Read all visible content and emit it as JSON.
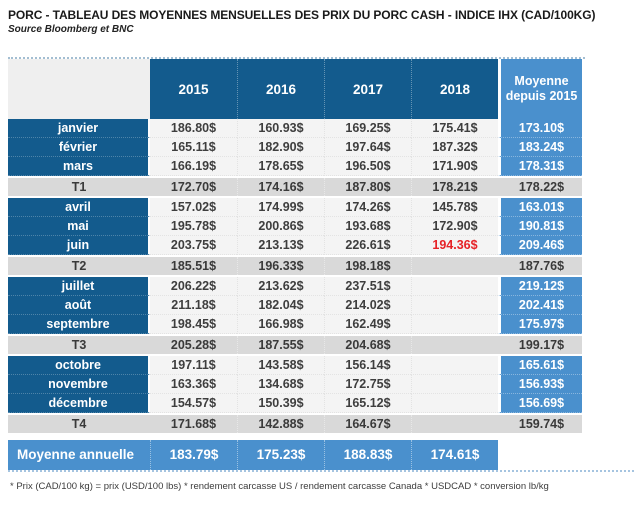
{
  "header": {
    "title": "PORC - TABLEAU DES MOYENNES MENSUELLES DES PRIX DU PORC CASH - INDICE IHX (CAD/100KG)",
    "source": "Source Bloomberg et BNC"
  },
  "table": {
    "year_columns": [
      "2015",
      "2016",
      "2017",
      "2018"
    ],
    "avg_column_header": "Moyenne depuis 2015",
    "rows": [
      {
        "type": "month",
        "label": "janvier",
        "values": [
          "186.80$",
          "160.93$",
          "169.25$",
          "175.41$"
        ],
        "avg": "173.10$"
      },
      {
        "type": "month",
        "label": "février",
        "values": [
          "165.11$",
          "182.90$",
          "197.64$",
          "187.32$"
        ],
        "avg": "183.24$"
      },
      {
        "type": "month",
        "label": "mars",
        "values": [
          "166.19$",
          "178.65$",
          "196.50$",
          "171.90$"
        ],
        "avg": "178.31$"
      },
      {
        "type": "quarter",
        "label": "T1",
        "values": [
          "172.70$",
          "174.16$",
          "187.80$",
          "178.21$"
        ],
        "avg": "178.22$"
      },
      {
        "type": "month",
        "label": "avril",
        "values": [
          "157.02$",
          "174.99$",
          "174.26$",
          "145.78$"
        ],
        "avg": "163.01$"
      },
      {
        "type": "month",
        "label": "mai",
        "values": [
          "195.78$",
          "200.86$",
          "193.68$",
          "172.90$"
        ],
        "avg": "190.81$"
      },
      {
        "type": "month",
        "label": "juin",
        "values": [
          "203.75$",
          "213.13$",
          "226.61$",
          "194.36$"
        ],
        "avg": "209.46$",
        "red_col": 3
      },
      {
        "type": "quarter",
        "label": "T2",
        "values": [
          "185.51$",
          "196.33$",
          "198.18$",
          ""
        ],
        "avg": "187.76$"
      },
      {
        "type": "month",
        "label": "juillet",
        "values": [
          "206.22$",
          "213.62$",
          "237.51$",
          ""
        ],
        "avg": "219.12$"
      },
      {
        "type": "month",
        "label": "août",
        "values": [
          "211.18$",
          "182.04$",
          "214.02$",
          ""
        ],
        "avg": "202.41$"
      },
      {
        "type": "month",
        "label": "septembre",
        "values": [
          "198.45$",
          "166.98$",
          "162.49$",
          ""
        ],
        "avg": "175.97$"
      },
      {
        "type": "quarter",
        "label": "T3",
        "values": [
          "205.28$",
          "187.55$",
          "204.68$",
          ""
        ],
        "avg": "199.17$"
      },
      {
        "type": "month",
        "label": "octobre",
        "values": [
          "197.11$",
          "143.58$",
          "156.14$",
          ""
        ],
        "avg": "165.61$"
      },
      {
        "type": "month",
        "label": "novembre",
        "values": [
          "163.36$",
          "134.68$",
          "172.75$",
          ""
        ],
        "avg": "156.93$"
      },
      {
        "type": "month",
        "label": "décembre",
        "values": [
          "154.57$",
          "150.39$",
          "165.12$",
          ""
        ],
        "avg": "156.69$"
      },
      {
        "type": "quarter",
        "label": "T4",
        "values": [
          "171.68$",
          "142.88$",
          "164.67$",
          ""
        ],
        "avg": "159.74$"
      },
      {
        "type": "annual",
        "label": "Moyenne annuelle",
        "values": [
          "183.79$",
          "175.23$",
          "188.83$",
          "174.61$"
        ],
        "avg": ""
      }
    ],
    "colors": {
      "dark_blue": "#135b8d",
      "light_blue": "#4a90cd",
      "quarter_gray": "#d9d9d9",
      "cell_gray": "#f4f4f4",
      "negative_red": "#e62227"
    }
  },
  "footnote": "* Prix (CAD/100 kg) = prix (USD/100 lbs) * rendement carcasse US / rendement carcasse Canada * USDCAD * conversion lb/kg"
}
